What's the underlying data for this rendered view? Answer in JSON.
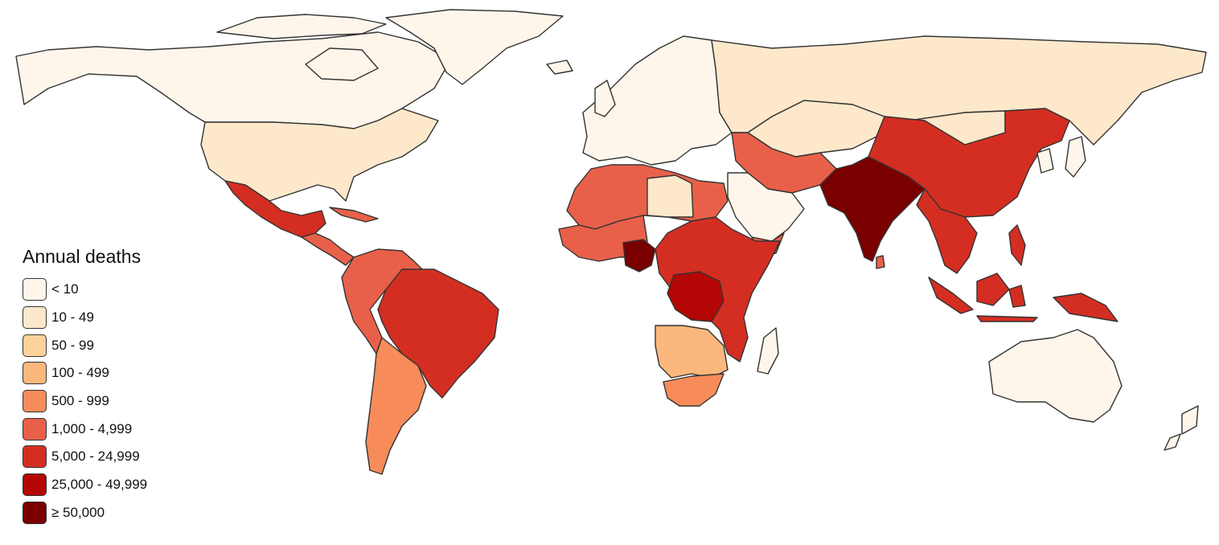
{
  "legend": {
    "title": "Annual deaths",
    "classes": [
      {
        "label": "< 10",
        "color": "#fff6eb"
      },
      {
        "label": "10 - 49",
        "color": "#fde8cb"
      },
      {
        "label": "50 - 99",
        "color": "#fdd29b"
      },
      {
        "label": "100 - 499",
        "color": "#fcb77c"
      },
      {
        "label": "500 - 999",
        "color": "#f78c5a"
      },
      {
        "label": "1,000 - 4,999",
        "color": "#e8604a"
      },
      {
        "label": "5,000 - 24,999",
        "color": "#d42e22"
      },
      {
        "label": "25,000 - 49,999",
        "color": "#b50606"
      },
      {
        "label": "≥ 50,000",
        "color": "#7a0000"
      }
    ]
  },
  "regions": [
    {
      "id": "canada-alaska",
      "class": "< 10"
    },
    {
      "id": "greenland",
      "class": "< 10"
    },
    {
      "id": "united-states",
      "class": "10 - 49"
    },
    {
      "id": "mexico",
      "class": "5,000 - 24,999"
    },
    {
      "id": "central-america",
      "class": "1,000 - 4,999"
    },
    {
      "id": "brazil",
      "class": "5,000 - 24,999"
    },
    {
      "id": "andean-south-america",
      "class": "1,000 - 4,999"
    },
    {
      "id": "argentina",
      "class": "500 - 999"
    },
    {
      "id": "europe",
      "class": "< 10"
    },
    {
      "id": "russia-north-asia",
      "class": "10 - 49"
    },
    {
      "id": "kazakhstan-central-asia",
      "class": "10 - 49"
    },
    {
      "id": "china",
      "class": "5,000 - 24,999"
    },
    {
      "id": "india-south-asia",
      "class": "≥ 50,000"
    },
    {
      "id": "middle-east",
      "class": "1,000 - 4,999"
    },
    {
      "id": "saudi-arabia",
      "class": "< 10"
    },
    {
      "id": "north-africa",
      "class": "1,000 - 4,999"
    },
    {
      "id": "libya",
      "class": "10 - 49"
    },
    {
      "id": "west-africa",
      "class": "1,000 - 4,999"
    },
    {
      "id": "nigeria",
      "class": "≥ 50,000"
    },
    {
      "id": "east-africa",
      "class": "5,000 - 24,999"
    },
    {
      "id": "dr-congo",
      "class": "25,000 - 49,999"
    },
    {
      "id": "southern-africa",
      "class": "100 - 499"
    },
    {
      "id": "south-africa",
      "class": "500 - 999"
    },
    {
      "id": "mainland-southeast-asia",
      "class": "5,000 - 24,999"
    },
    {
      "id": "indonesia",
      "class": "5,000 - 24,999"
    },
    {
      "id": "australia",
      "class": "< 10"
    },
    {
      "id": "japan-korea",
      "class": "< 10"
    }
  ]
}
